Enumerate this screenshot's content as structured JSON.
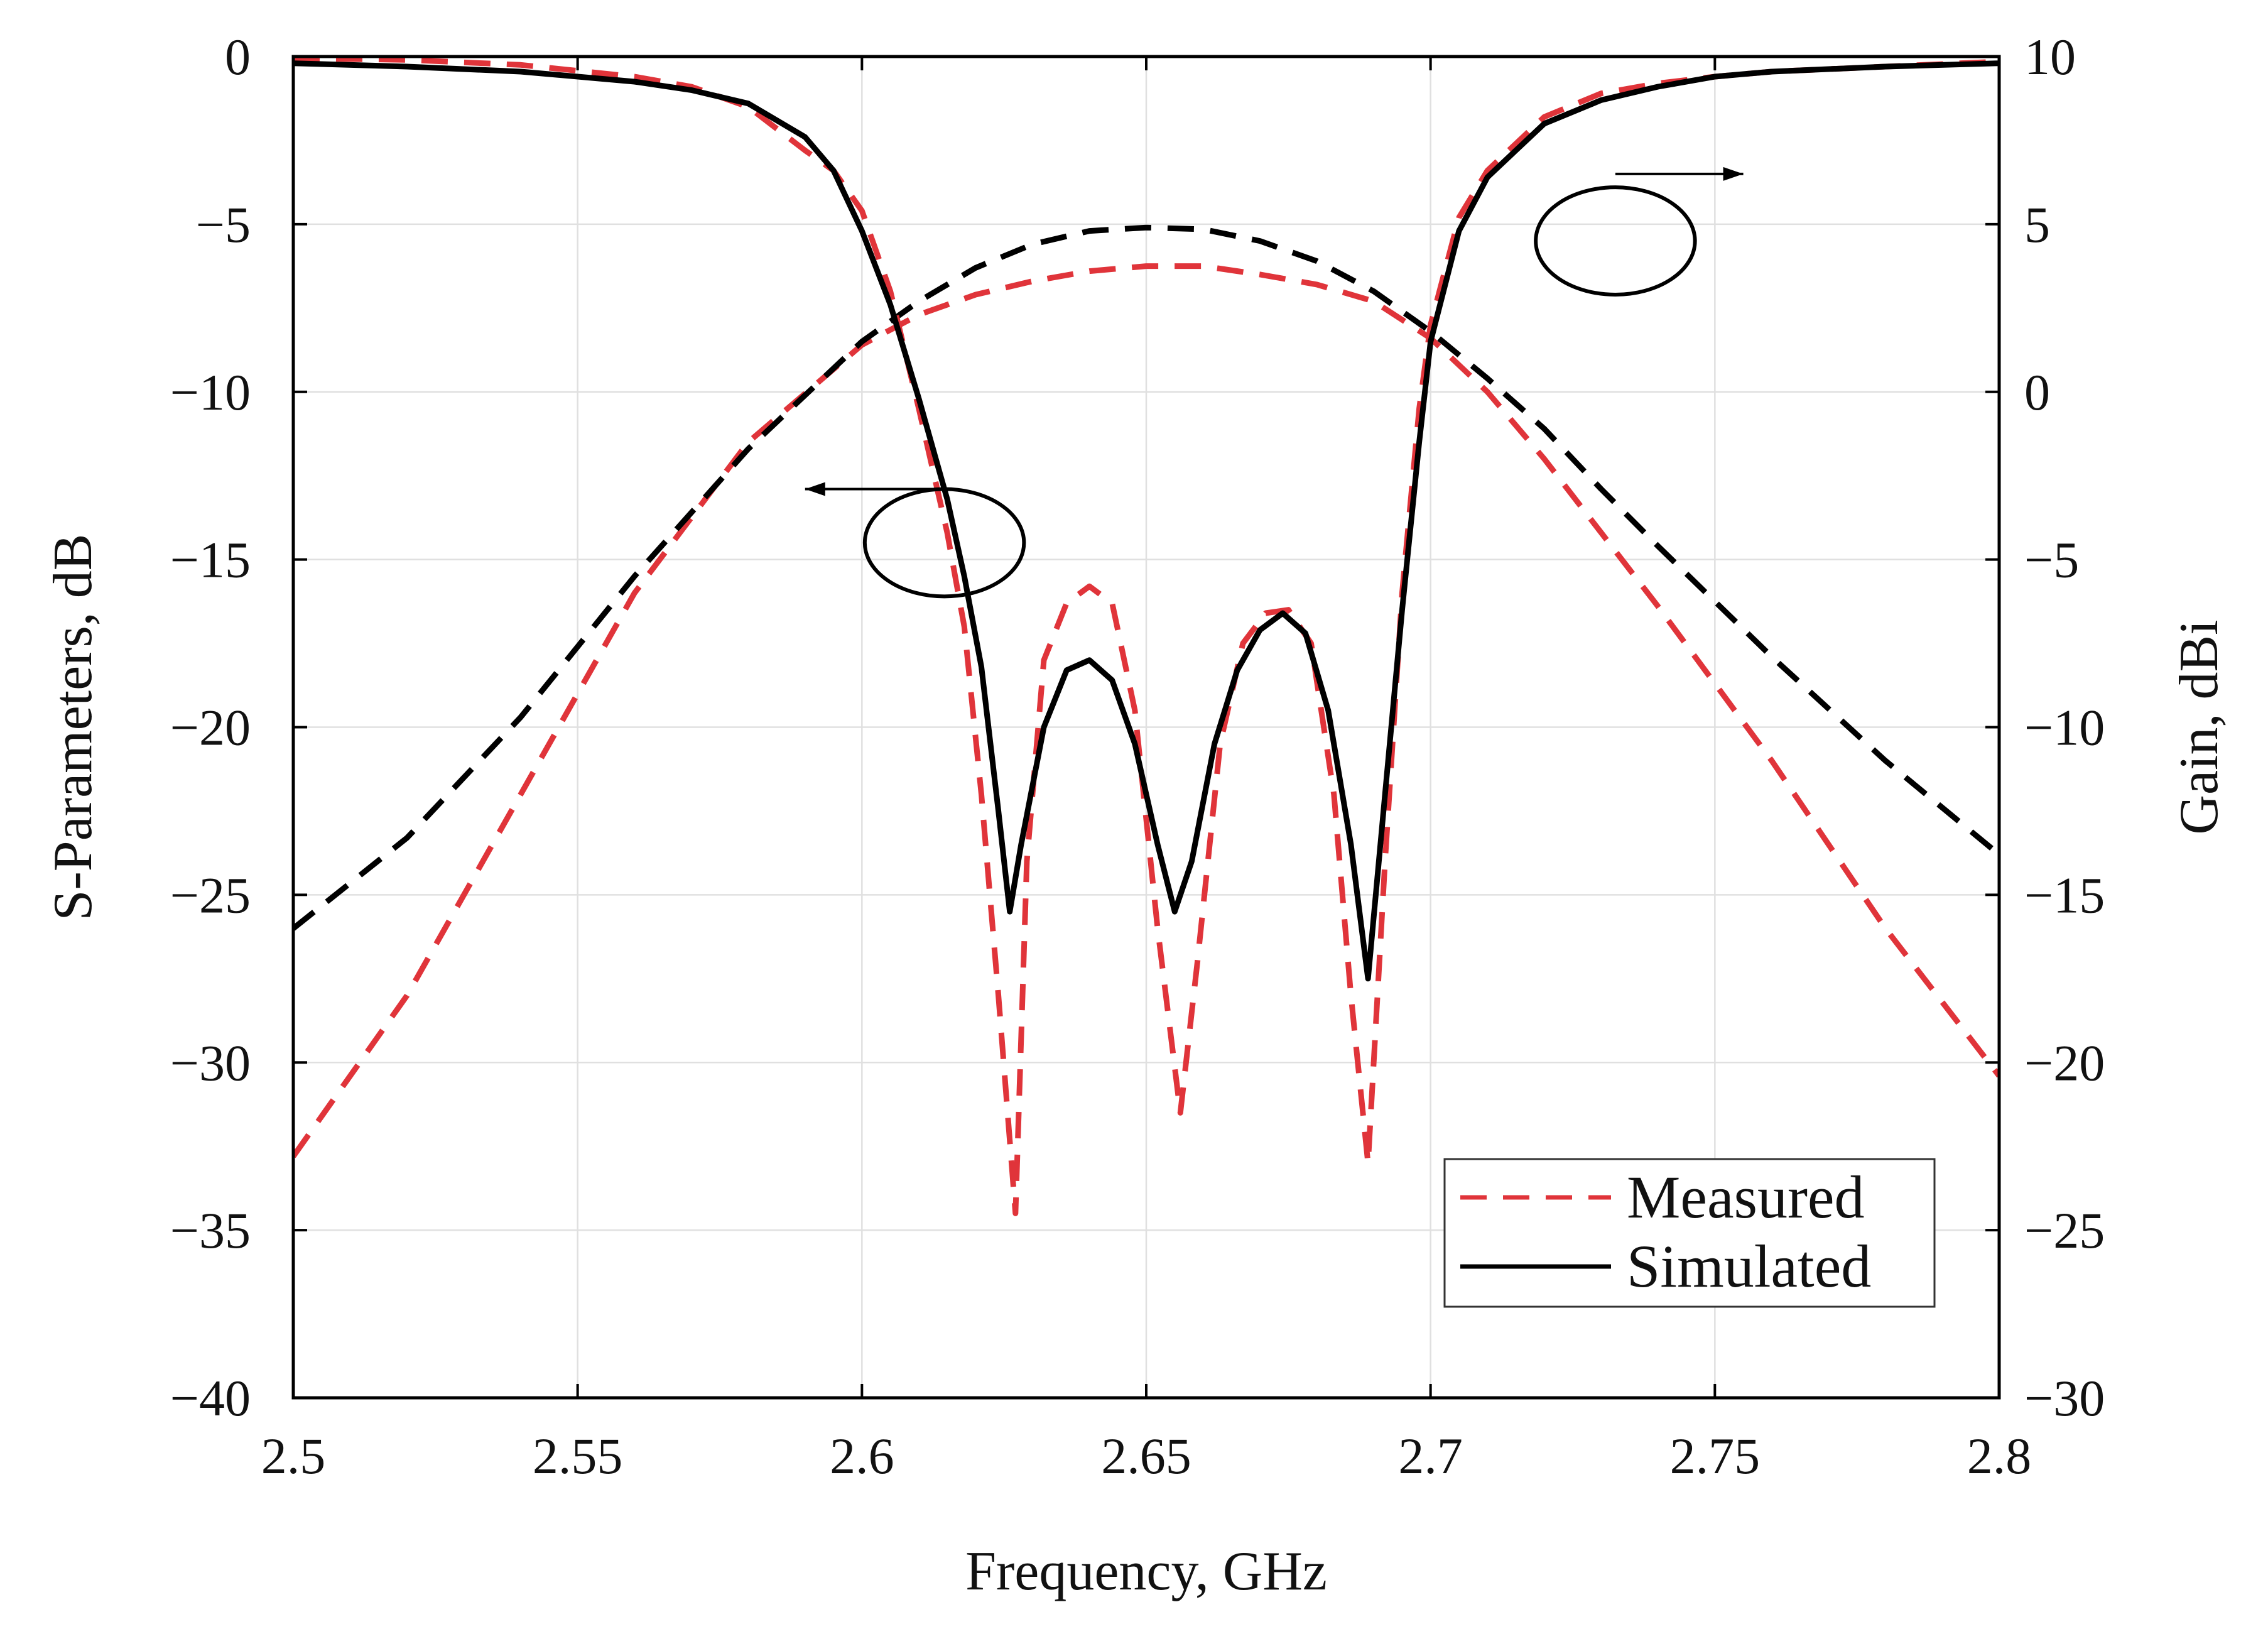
{
  "chart_data": {
    "type": "line",
    "title": "",
    "xlabel": "Frequency, GHz",
    "ylabel_left": "S-Parameters, dB",
    "ylabel_right": "Gain, dBi",
    "xlim": [
      2.5,
      2.8
    ],
    "ylim_left": [
      -40,
      0
    ],
    "ylim_right": [
      -30,
      10
    ],
    "x_ticks": [
      2.5,
      2.55,
      2.6,
      2.65,
      2.7,
      2.75,
      2.8
    ],
    "x_tick_labels": [
      "2.5",
      "2.55",
      "2.6",
      "2.65",
      "2.7",
      "2.75",
      "2.8"
    ],
    "y_left_ticks": [
      0,
      -5,
      -10,
      -15,
      -20,
      -25,
      -30,
      -35,
      -40
    ],
    "y_left_tick_labels": [
      "0",
      "−5",
      "−10",
      "−15",
      "−20",
      "−25",
      "−30",
      "−35",
      "−40"
    ],
    "y_right_ticks": [
      10,
      5,
      0,
      -5,
      -10,
      -15,
      -20,
      -25,
      -30
    ],
    "y_right_tick_labels": [
      "10",
      "5",
      "0",
      "−5",
      "−10",
      "−15",
      "−20",
      "−25",
      "−30"
    ],
    "grid": true,
    "legend": {
      "position": "bottom-right",
      "entries": [
        {
          "label": "Measured",
          "color": "#e0343a",
          "style": "dashed"
        },
        {
          "label": "Simulated",
          "color": "#000000",
          "style": "solid"
        }
      ]
    },
    "series": [
      {
        "name": "Simulated S11",
        "axis": "left",
        "color": "#000000",
        "style": "solid",
        "x": [
          2.5,
          2.52,
          2.54,
          2.56,
          2.57,
          2.58,
          2.59,
          2.595,
          2.6,
          2.605,
          2.61,
          2.615,
          2.618,
          2.621,
          2.624,
          2.626,
          2.628,
          2.632,
          2.636,
          2.64,
          2.644,
          2.648,
          2.652,
          2.655,
          2.658,
          2.662,
          2.666,
          2.67,
          2.674,
          2.678,
          2.682,
          2.686,
          2.689,
          2.692,
          2.695,
          2.698,
          2.7,
          2.705,
          2.71,
          2.72,
          2.73,
          2.74,
          2.75,
          2.76,
          2.78,
          2.8
        ],
        "y": [
          -0.2,
          -0.3,
          -0.45,
          -0.75,
          -1.0,
          -1.4,
          -2.4,
          -3.4,
          -5.2,
          -7.4,
          -10.2,
          -13.2,
          -15.5,
          -18.2,
          -22.5,
          -25.5,
          -23.5,
          -20.0,
          -18.3,
          -18.0,
          -18.6,
          -20.5,
          -23.5,
          -25.5,
          -24.0,
          -20.5,
          -18.3,
          -17.1,
          -16.6,
          -17.2,
          -19.5,
          -23.5,
          -27.5,
          -22.0,
          -16.5,
          -11.5,
          -8.5,
          -5.2,
          -3.6,
          -2.0,
          -1.3,
          -0.9,
          -0.6,
          -0.45,
          -0.3,
          -0.2
        ]
      },
      {
        "name": "Measured S11",
        "axis": "left",
        "color": "#e0343a",
        "style": "dashed",
        "x": [
          2.5,
          2.52,
          2.54,
          2.56,
          2.57,
          2.58,
          2.59,
          2.595,
          2.6,
          2.605,
          2.61,
          2.615,
          2.618,
          2.621,
          2.624,
          2.627,
          2.629,
          2.632,
          2.636,
          2.64,
          2.644,
          2.648,
          2.652,
          2.656,
          2.659,
          2.663,
          2.667,
          2.671,
          2.675,
          2.679,
          2.683,
          2.686,
          2.689,
          2.692,
          2.695,
          2.698,
          2.7,
          2.705,
          2.71,
          2.72,
          2.73,
          2.74,
          2.75,
          2.76,
          2.78,
          2.8
        ],
        "y": [
          -0.05,
          -0.1,
          -0.25,
          -0.6,
          -0.9,
          -1.5,
          -2.8,
          -3.4,
          -4.6,
          -7.0,
          -10.5,
          -14.2,
          -17.0,
          -22.0,
          -28.0,
          -34.5,
          -24.0,
          -18.0,
          -16.3,
          -15.8,
          -16.3,
          -19.5,
          -26.0,
          -31.5,
          -27.0,
          -20.5,
          -17.5,
          -16.6,
          -16.5,
          -17.5,
          -22.0,
          -28.0,
          -33.0,
          -24.0,
          -16.0,
          -10.5,
          -8.0,
          -4.8,
          -3.4,
          -1.8,
          -1.1,
          -0.8,
          -0.6,
          -0.45,
          -0.3,
          -0.15
        ]
      },
      {
        "name": "Simulated Gain",
        "axis": "right",
        "color": "#000000",
        "style": "dashed",
        "x": [
          2.5,
          2.52,
          2.54,
          2.56,
          2.58,
          2.6,
          2.61,
          2.62,
          2.63,
          2.64,
          2.65,
          2.66,
          2.67,
          2.68,
          2.69,
          2.7,
          2.71,
          2.72,
          2.73,
          2.74,
          2.76,
          2.78,
          2.8
        ],
        "y": [
          -16.0,
          -13.3,
          -9.7,
          -5.5,
          -1.7,
          1.5,
          2.7,
          3.7,
          4.4,
          4.8,
          4.9,
          4.85,
          4.5,
          3.9,
          3.0,
          1.8,
          0.4,
          -1.1,
          -2.9,
          -4.6,
          -7.9,
          -11.0,
          -13.8
        ]
      },
      {
        "name": "Measured Gain",
        "axis": "right",
        "color": "#e0343a",
        "style": "dashed",
        "x": [
          2.5,
          2.52,
          2.54,
          2.56,
          2.58,
          2.6,
          2.61,
          2.62,
          2.63,
          2.64,
          2.65,
          2.66,
          2.67,
          2.68,
          2.69,
          2.7,
          2.71,
          2.72,
          2.73,
          2.74,
          2.76,
          2.78,
          2.8
        ],
        "y": [
          -22.8,
          -18.0,
          -12.0,
          -6.0,
          -1.5,
          1.4,
          2.3,
          2.9,
          3.3,
          3.6,
          3.75,
          3.75,
          3.5,
          3.2,
          2.7,
          1.6,
          0.0,
          -2.0,
          -4.2,
          -6.4,
          -11.0,
          -16.0,
          -20.4
        ]
      }
    ],
    "annotations": [
      {
        "type": "ellipse-arrow",
        "points_to": "left axis",
        "center": [
          2.6145,
          -14.5
        ],
        "semi_axes": [
          0.014,
          1.6
        ],
        "arrow_from": [
          2.6145,
          -12.9
        ],
        "arrow_to": [
          2.59,
          -12.9
        ]
      },
      {
        "type": "ellipse-arrow",
        "points_to": "right axis",
        "center": [
          2.7325,
          -5.5
        ],
        "semi_axes": [
          0.014,
          1.6
        ],
        "arrow_from": [
          2.7325,
          -3.5
        ],
        "arrow_to": [
          2.755,
          -3.5
        ]
      }
    ]
  }
}
